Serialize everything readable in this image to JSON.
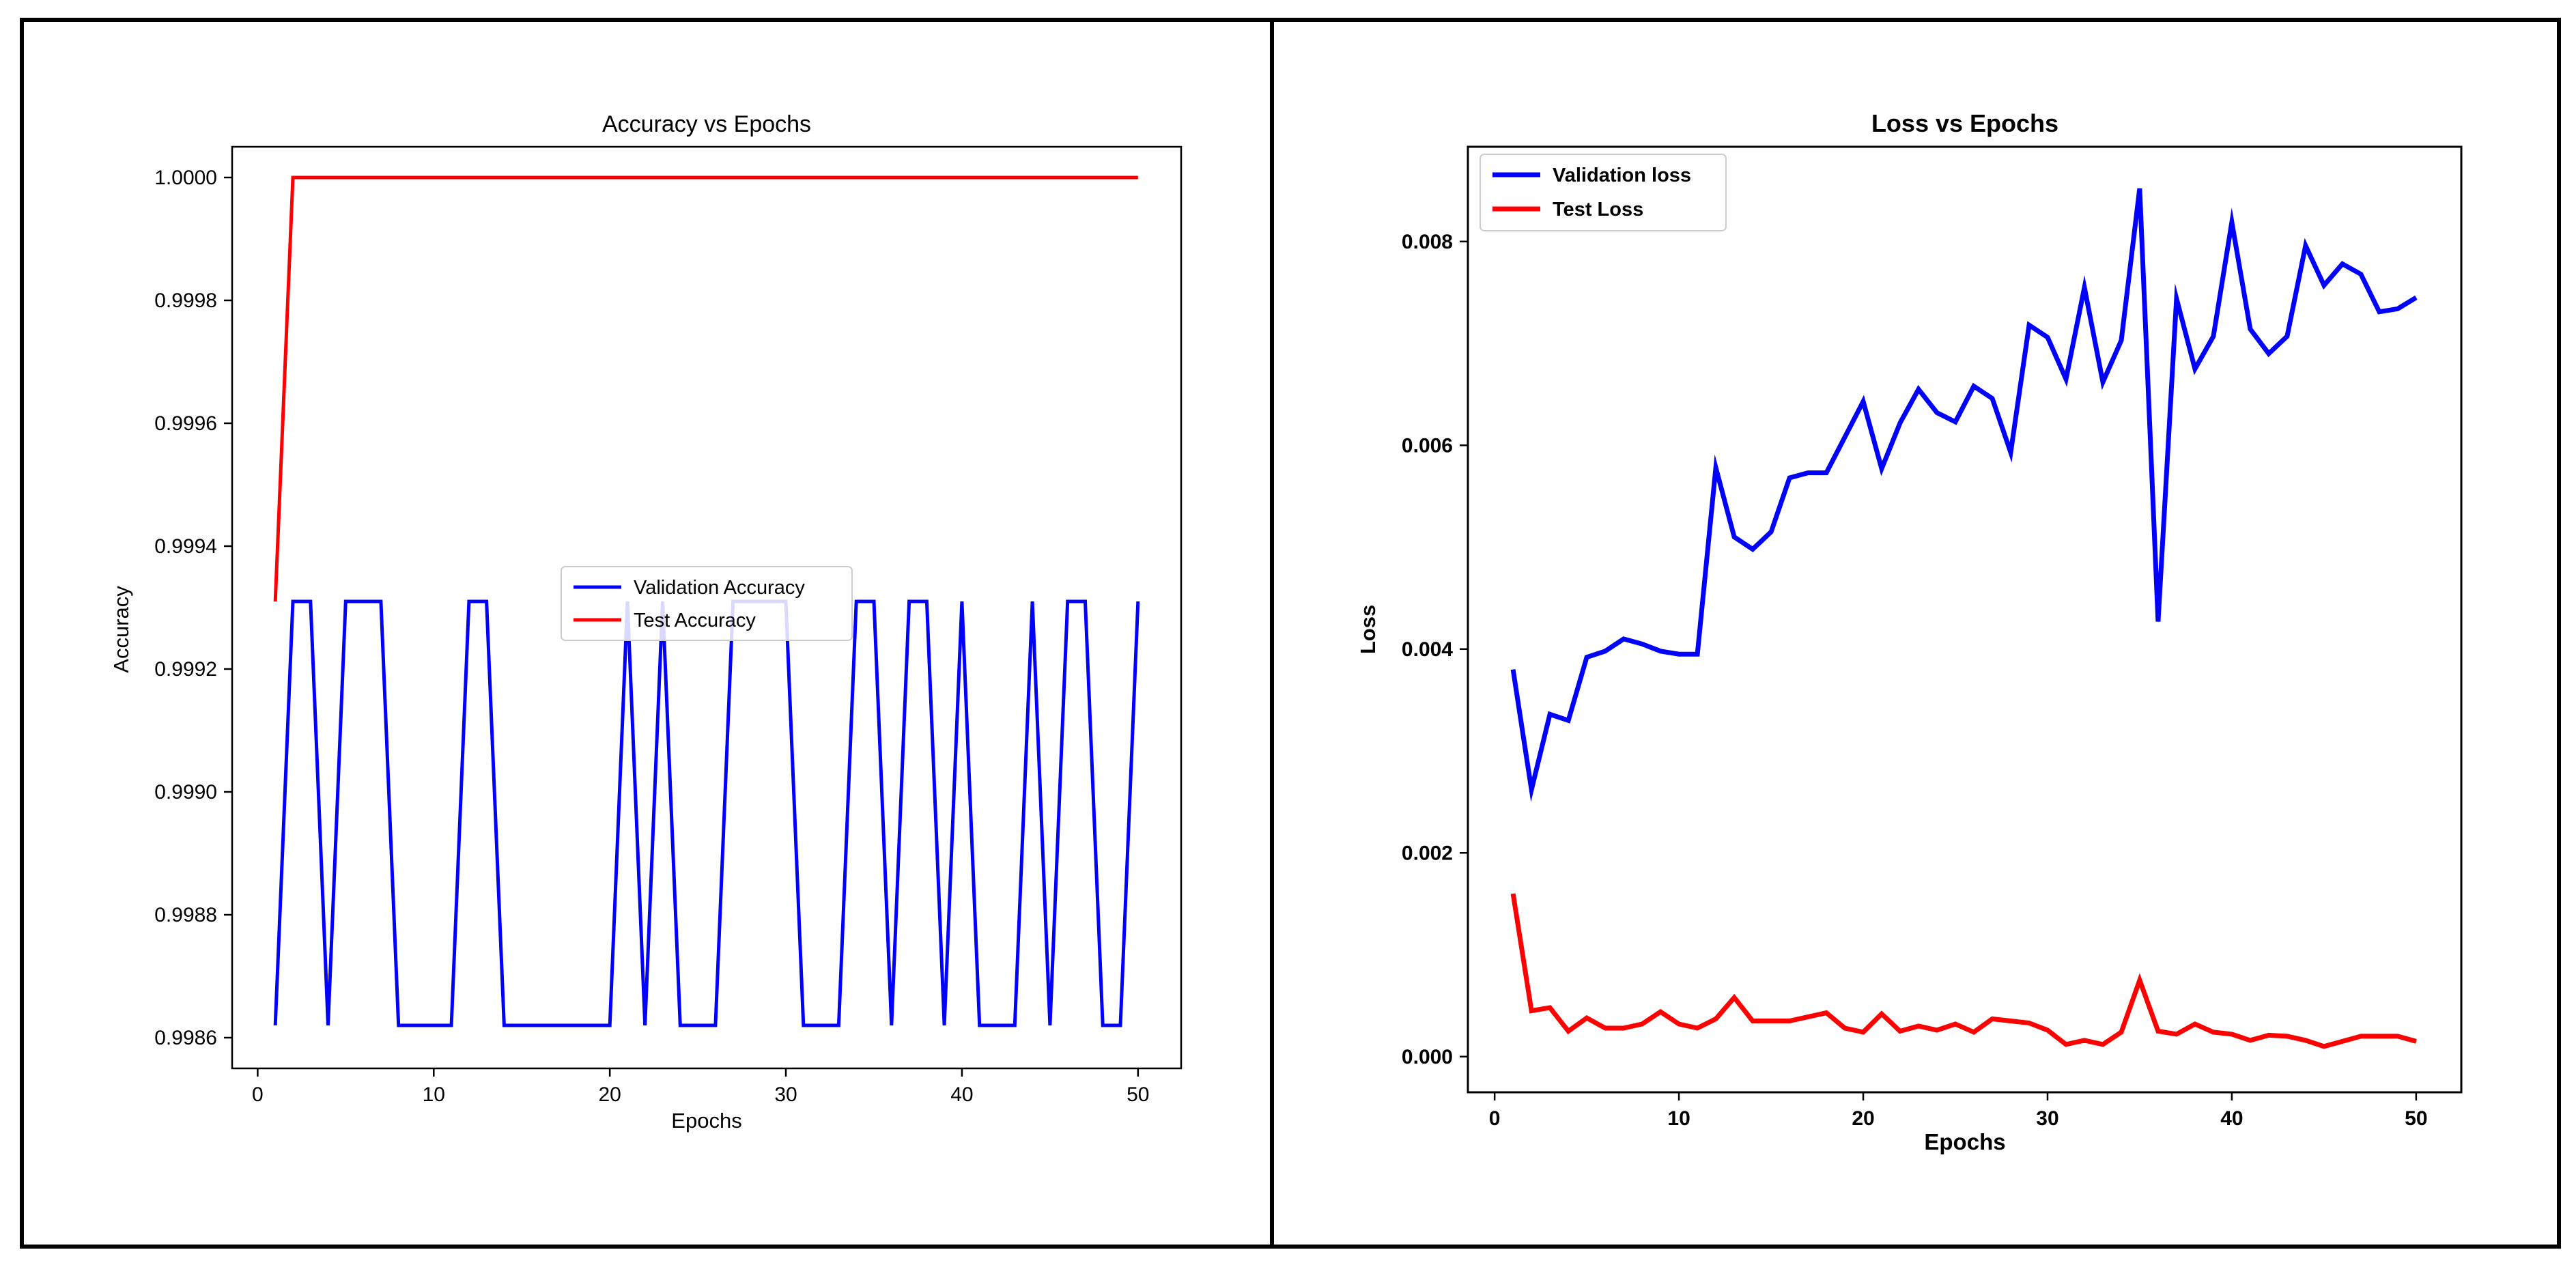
{
  "chart_data": [
    {
      "type": "line",
      "title": "Accuracy vs Epochs",
      "xlabel": "Epochs",
      "ylabel": "Accuracy",
      "xlim": [
        -1.45,
        52.45
      ],
      "ylim": [
        0.99855,
        1.00005
      ],
      "xticks": [
        0,
        10,
        20,
        30,
        40,
        50
      ],
      "xtick_labels": [
        "0",
        "10",
        "20",
        "30",
        "40",
        "50"
      ],
      "yticks": [
        0.9986,
        0.9988,
        0.999,
        0.9992,
        0.9994,
        0.9996,
        0.9998,
        1.0
      ],
      "ytick_labels": [
        "0.9986",
        "0.9988",
        "0.9990",
        "0.9992",
        "0.9994",
        "0.9996",
        "0.9998",
        "1.0000"
      ],
      "grid": false,
      "legend_position": "center",
      "legend_bold": false,
      "x": [
        1,
        2,
        3,
        4,
        5,
        6,
        7,
        8,
        9,
        10,
        11,
        12,
        13,
        14,
        15,
        16,
        17,
        18,
        19,
        20,
        21,
        22,
        23,
        24,
        25,
        26,
        27,
        28,
        29,
        30,
        31,
        32,
        33,
        34,
        35,
        36,
        37,
        38,
        39,
        40,
        41,
        42,
        43,
        44,
        45,
        46,
        47,
        48,
        49,
        50
      ],
      "series": [
        {
          "name": "Validation Accuracy",
          "color": "#0000ff",
          "values": [
            0.99862,
            0.99931,
            0.99931,
            0.99862,
            0.99931,
            0.99931,
            0.99931,
            0.99862,
            0.99862,
            0.99862,
            0.99862,
            0.99931,
            0.99931,
            0.99862,
            0.99862,
            0.99862,
            0.99862,
            0.99862,
            0.99862,
            0.99862,
            0.99931,
            0.99862,
            0.99931,
            0.99862,
            0.99862,
            0.99862,
            0.99931,
            0.99931,
            0.99931,
            0.99931,
            0.99862,
            0.99862,
            0.99862,
            0.99931,
            0.99931,
            0.99862,
            0.99931,
            0.99931,
            0.99862,
            0.99931,
            0.99862,
            0.99862,
            0.99862,
            0.99931,
            0.99862,
            0.99931,
            0.99931,
            0.99862,
            0.99862,
            0.99931
          ]
        },
        {
          "name": "Test Accuracy",
          "color": "#ff0000",
          "values": [
            0.99931,
            1.0,
            1.0,
            1.0,
            1.0,
            1.0,
            1.0,
            1.0,
            1.0,
            1.0,
            1.0,
            1.0,
            1.0,
            1.0,
            1.0,
            1.0,
            1.0,
            1.0,
            1.0,
            1.0,
            1.0,
            1.0,
            1.0,
            1.0,
            1.0,
            1.0,
            1.0,
            1.0,
            1.0,
            1.0,
            1.0,
            1.0,
            1.0,
            1.0,
            1.0,
            1.0,
            1.0,
            1.0,
            1.0,
            1.0,
            1.0,
            1.0,
            1.0,
            1.0,
            1.0,
            1.0,
            1.0,
            1.0,
            1.0,
            1.0
          ]
        }
      ]
    },
    {
      "type": "line",
      "title": "Loss vs Epochs",
      "xlabel": "Epochs",
      "ylabel": "Loss",
      "xlim": [
        -1.45,
        52.45
      ],
      "ylim": [
        -0.00035,
        0.00893
      ],
      "xticks": [
        0,
        10,
        20,
        30,
        40,
        50
      ],
      "xtick_labels": [
        "0",
        "10",
        "20",
        "30",
        "40",
        "50"
      ],
      "yticks": [
        0.0,
        0.002,
        0.004,
        0.006,
        0.008
      ],
      "ytick_labels": [
        "0.000",
        "0.002",
        "0.004",
        "0.006",
        "0.008"
      ],
      "grid": false,
      "legend_position": "upper left",
      "legend_bold": true,
      "x": [
        1,
        2,
        3,
        4,
        5,
        6,
        7,
        8,
        9,
        10,
        11,
        12,
        13,
        14,
        15,
        16,
        17,
        18,
        19,
        20,
        21,
        22,
        23,
        24,
        25,
        26,
        27,
        28,
        29,
        30,
        31,
        32,
        33,
        34,
        35,
        36,
        37,
        38,
        39,
        40,
        41,
        42,
        43,
        44,
        45,
        46,
        47,
        48,
        49,
        50
      ],
      "series": [
        {
          "name": "Validation loss",
          "color": "#0000ff",
          "values": [
            0.0038,
            0.00262,
            0.00336,
            0.0033,
            0.00392,
            0.00398,
            0.0041,
            0.00405,
            0.00398,
            0.00395,
            0.00395,
            0.00578,
            0.0051,
            0.00498,
            0.00515,
            0.00568,
            0.00573,
            0.00573,
            0.00608,
            0.00643,
            0.00577,
            0.00622,
            0.00655,
            0.00632,
            0.00623,
            0.00658,
            0.00646,
            0.00593,
            0.00718,
            0.00706,
            0.00665,
            0.00755,
            0.00662,
            0.00703,
            0.00852,
            0.00427,
            0.00744,
            0.00675,
            0.00707,
            0.00819,
            0.00714,
            0.0069,
            0.00707,
            0.00796,
            0.00757,
            0.00778,
            0.00768,
            0.00731,
            0.00734,
            0.00745
          ]
        },
        {
          "name": "Test Loss",
          "color": "#ff0000",
          "values": [
            0.0016,
            0.00045,
            0.00048,
            0.00025,
            0.00038,
            0.00028,
            0.00028,
            0.00032,
            0.00044,
            0.00032,
            0.00028,
            0.00037,
            0.00058,
            0.00035,
            0.00035,
            0.00035,
            0.00039,
            0.00043,
            0.00028,
            0.00024,
            0.00042,
            0.00025,
            0.0003,
            0.00026,
            0.00032,
            0.00024,
            0.00037,
            0.00035,
            0.00033,
            0.00026,
            0.00012,
            0.00016,
            0.00012,
            0.00024,
            0.00075,
            0.00025,
            0.00022,
            0.00032,
            0.00024,
            0.00022,
            0.00016,
            0.00021,
            0.0002,
            0.00016,
            0.0001,
            0.00015,
            0.0002,
            0.0002,
            0.0002,
            0.00015
          ]
        }
      ]
    }
  ]
}
